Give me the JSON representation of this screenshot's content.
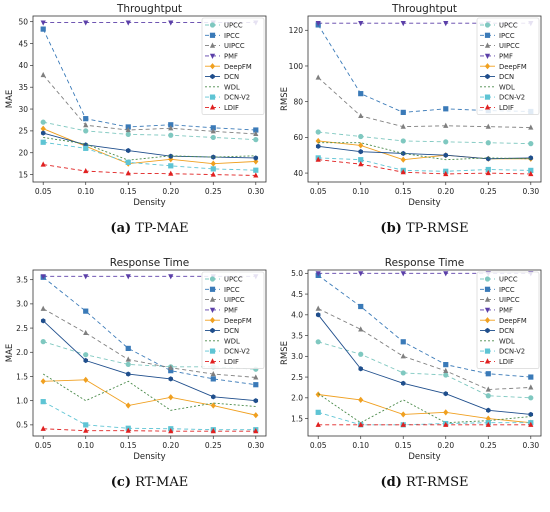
{
  "legend_labels": [
    "UPCC",
    "IPCC",
    "UIPCC",
    "PMF",
    "DeepFM",
    "DCN",
    "WDL",
    "DCN-V2",
    "LDIF"
  ],
  "series_styles": [
    {
      "name": "UPCC",
      "color": "#7fc8c0",
      "marker": "circle",
      "dash": "4,3"
    },
    {
      "name": "IPCC",
      "color": "#3a7ab8",
      "marker": "square",
      "dash": "4,3"
    },
    {
      "name": "UIPCC",
      "color": "#7f7f7f",
      "marker": "triangle",
      "dash": "4,3"
    },
    {
      "name": "PMF",
      "color": "#5b3fa8",
      "marker": "triangle-down",
      "dash": "4,3"
    },
    {
      "name": "DeepFM",
      "color": "#f0a020",
      "marker": "diamond",
      "dash": ""
    },
    {
      "name": "DCN",
      "color": "#1f4e8c",
      "marker": "hexagon",
      "dash": ""
    },
    {
      "name": "WDL",
      "color": "#4a8a4a",
      "marker": "none",
      "dash": "2,2"
    },
    {
      "name": "DCN-V2",
      "color": "#5ec4d4",
      "marker": "square",
      "dash": "4,3"
    },
    {
      "name": "LDIF",
      "color": "#e02020",
      "marker": "triangle",
      "dash": "4,3"
    }
  ],
  "chart_data": [
    {
      "id": "tp-mae",
      "type": "line",
      "title": "Throughtput",
      "xlabel": "Density",
      "ylabel": "MAE",
      "caption_letter": "(a)",
      "caption_text": "TP-MAE",
      "x": [
        0.05,
        0.1,
        0.15,
        0.2,
        0.25,
        0.3
      ],
      "x_ticks": [
        "0.05",
        "0.10",
        "0.15",
        "0.20",
        "0.25",
        "0.30"
      ],
      "xlim": [
        0.038,
        0.312
      ],
      "ylim": [
        13.3,
        51.3
      ],
      "y_ticks": [
        15,
        20,
        25,
        30,
        35,
        40,
        45,
        50
      ],
      "series": [
        {
          "name": "UPCC",
          "values": [
            27.0,
            25.0,
            24.2,
            24.0,
            23.5,
            23.0
          ]
        },
        {
          "name": "IPCC",
          "values": [
            48.3,
            27.8,
            25.9,
            26.4,
            25.7,
            25.2
          ]
        },
        {
          "name": "UIPCC",
          "values": [
            37.8,
            26.3,
            25.2,
            25.6,
            24.9,
            24.3
          ]
        },
        {
          "name": "PMF",
          "values": [
            49.8,
            49.8,
            49.8,
            49.8,
            49.8,
            49.8
          ]
        },
        {
          "name": "DeepFM",
          "values": [
            25.5,
            21.5,
            17.5,
            18.5,
            17.5,
            18.0
          ]
        },
        {
          "name": "DCN",
          "values": [
            24.5,
            21.8,
            20.5,
            19.2,
            19.0,
            18.8
          ]
        },
        {
          "name": "WDL",
          "values": [
            23.5,
            22.0,
            18.3,
            19.3,
            19.0,
            19.3
          ]
        },
        {
          "name": "DCN-V2",
          "values": [
            22.4,
            21.0,
            17.8,
            17.0,
            16.3,
            16.0
          ]
        },
        {
          "name": "LDIF",
          "values": [
            17.3,
            15.8,
            15.3,
            15.2,
            15.0,
            14.8
          ]
        }
      ]
    },
    {
      "id": "tp-rmse",
      "type": "line",
      "title": "Throughtput",
      "xlabel": "Density",
      "ylabel": "RMSE",
      "caption_letter": "(b)",
      "caption_text": "TP-RMSE",
      "x": [
        0.05,
        0.1,
        0.15,
        0.2,
        0.25,
        0.3
      ],
      "x_ticks": [
        "0.05",
        "0.10",
        "0.15",
        "0.20",
        "0.25",
        "0.30"
      ],
      "xlim": [
        0.038,
        0.312
      ],
      "ylim": [
        35,
        128
      ],
      "y_ticks": [
        40,
        60,
        80,
        100,
        120
      ],
      "series": [
        {
          "name": "UPCC",
          "values": [
            63.0,
            60.5,
            58.0,
            57.5,
            57.0,
            56.5
          ]
        },
        {
          "name": "IPCC",
          "values": [
            123.0,
            84.5,
            74.0,
            76.0,
            75.0,
            74.5
          ]
        },
        {
          "name": "UIPCC",
          "values": [
            93.5,
            72.0,
            66.0,
            66.5,
            66.0,
            65.5
          ]
        },
        {
          "name": "PMF",
          "values": [
            124.0,
            124.0,
            124.0,
            124.0,
            124.0,
            124.0
          ]
        },
        {
          "name": "DeepFM",
          "values": [
            58.0,
            55.5,
            47.5,
            50.0,
            48.0,
            48.0
          ]
        },
        {
          "name": "DCN",
          "values": [
            55.0,
            52.0,
            51.0,
            50.0,
            48.0,
            48.5
          ]
        },
        {
          "name": "WDL",
          "values": [
            57.0,
            57.0,
            51.0,
            47.5,
            48.5,
            48.0
          ]
        },
        {
          "name": "DCN-V2",
          "values": [
            48.5,
            47.5,
            41.5,
            41.0,
            42.0,
            41.5
          ]
        },
        {
          "name": "LDIF",
          "values": [
            47.5,
            45.0,
            40.5,
            39.5,
            40.0,
            39.5
          ]
        }
      ]
    },
    {
      "id": "rt-mae",
      "type": "line",
      "title": "Response Time",
      "xlabel": "Density",
      "ylabel": "MAE",
      "caption_letter": "(c)",
      "caption_text": "RT-MAE",
      "x": [
        0.05,
        0.1,
        0.15,
        0.2,
        0.25,
        0.3
      ],
      "x_ticks": [
        "0.05",
        "0.10",
        "0.15",
        "0.20",
        "0.25",
        "0.30"
      ],
      "xlim": [
        0.038,
        0.312
      ],
      "ylim": [
        0.27,
        3.7
      ],
      "y_ticks": [
        0.5,
        1.0,
        1.5,
        2.0,
        2.5,
        3.0,
        3.5
      ],
      "series": [
        {
          "name": "UPCC",
          "values": [
            2.22,
            1.95,
            1.75,
            1.7,
            1.7,
            1.65
          ]
        },
        {
          "name": "IPCC",
          "values": [
            3.55,
            2.85,
            2.08,
            1.62,
            1.45,
            1.33
          ]
        },
        {
          "name": "UIPCC",
          "values": [
            2.9,
            2.4,
            1.85,
            1.68,
            1.55,
            1.48
          ]
        },
        {
          "name": "PMF",
          "values": [
            3.57,
            3.57,
            3.57,
            3.57,
            3.57,
            3.57
          ]
        },
        {
          "name": "DeepFM",
          "values": [
            1.4,
            1.43,
            0.9,
            1.07,
            0.9,
            0.7
          ]
        },
        {
          "name": "DCN",
          "values": [
            2.65,
            1.83,
            1.55,
            1.45,
            1.08,
            1.0
          ]
        },
        {
          "name": "WDL",
          "values": [
            1.55,
            1.0,
            1.4,
            0.8,
            0.95,
            0.88
          ]
        },
        {
          "name": "DCN-V2",
          "values": [
            0.98,
            0.5,
            0.43,
            0.42,
            0.4,
            0.4
          ]
        },
        {
          "name": "LDIF",
          "values": [
            0.42,
            0.38,
            0.38,
            0.37,
            0.37,
            0.37
          ]
        }
      ]
    },
    {
      "id": "rt-rmse",
      "type": "line",
      "title": "Response Time",
      "xlabel": "Density",
      "ylabel": "RMSE",
      "caption_letter": "(d)",
      "caption_text": "RT-RMSE",
      "x": [
        0.05,
        0.1,
        0.15,
        0.2,
        0.25,
        0.3
      ],
      "x_ticks": [
        "0.05",
        "0.10",
        "0.15",
        "0.20",
        "0.25",
        "0.30"
      ],
      "xlim": [
        0.038,
        0.312
      ],
      "ylim": [
        1.08,
        5.08
      ],
      "y_ticks": [
        1.5,
        2.0,
        2.5,
        3.0,
        3.5,
        4.0,
        4.5,
        5.0
      ],
      "series": [
        {
          "name": "UPCC",
          "values": [
            3.35,
            3.05,
            2.6,
            2.55,
            2.05,
            2.0
          ]
        },
        {
          "name": "IPCC",
          "values": [
            4.95,
            4.2,
            3.35,
            2.8,
            2.58,
            2.5
          ]
        },
        {
          "name": "UIPCC",
          "values": [
            4.15,
            3.65,
            3.0,
            2.65,
            2.2,
            2.25
          ]
        },
        {
          "name": "PMF",
          "values": [
            5.0,
            5.0,
            5.0,
            5.0,
            5.0,
            5.0
          ]
        },
        {
          "name": "DeepFM",
          "values": [
            2.08,
            1.95,
            1.6,
            1.65,
            1.5,
            1.4
          ]
        },
        {
          "name": "DCN",
          "values": [
            4.0,
            2.7,
            2.35,
            2.1,
            1.7,
            1.6
          ]
        },
        {
          "name": "WDL",
          "values": [
            2.1,
            1.4,
            1.95,
            1.4,
            1.45,
            1.55
          ]
        },
        {
          "name": "DCN-V2",
          "values": [
            1.65,
            1.35,
            1.35,
            1.38,
            1.4,
            1.4
          ]
        },
        {
          "name": "LDIF",
          "values": [
            1.35,
            1.35,
            1.35,
            1.35,
            1.35,
            1.35
          ]
        }
      ]
    }
  ]
}
